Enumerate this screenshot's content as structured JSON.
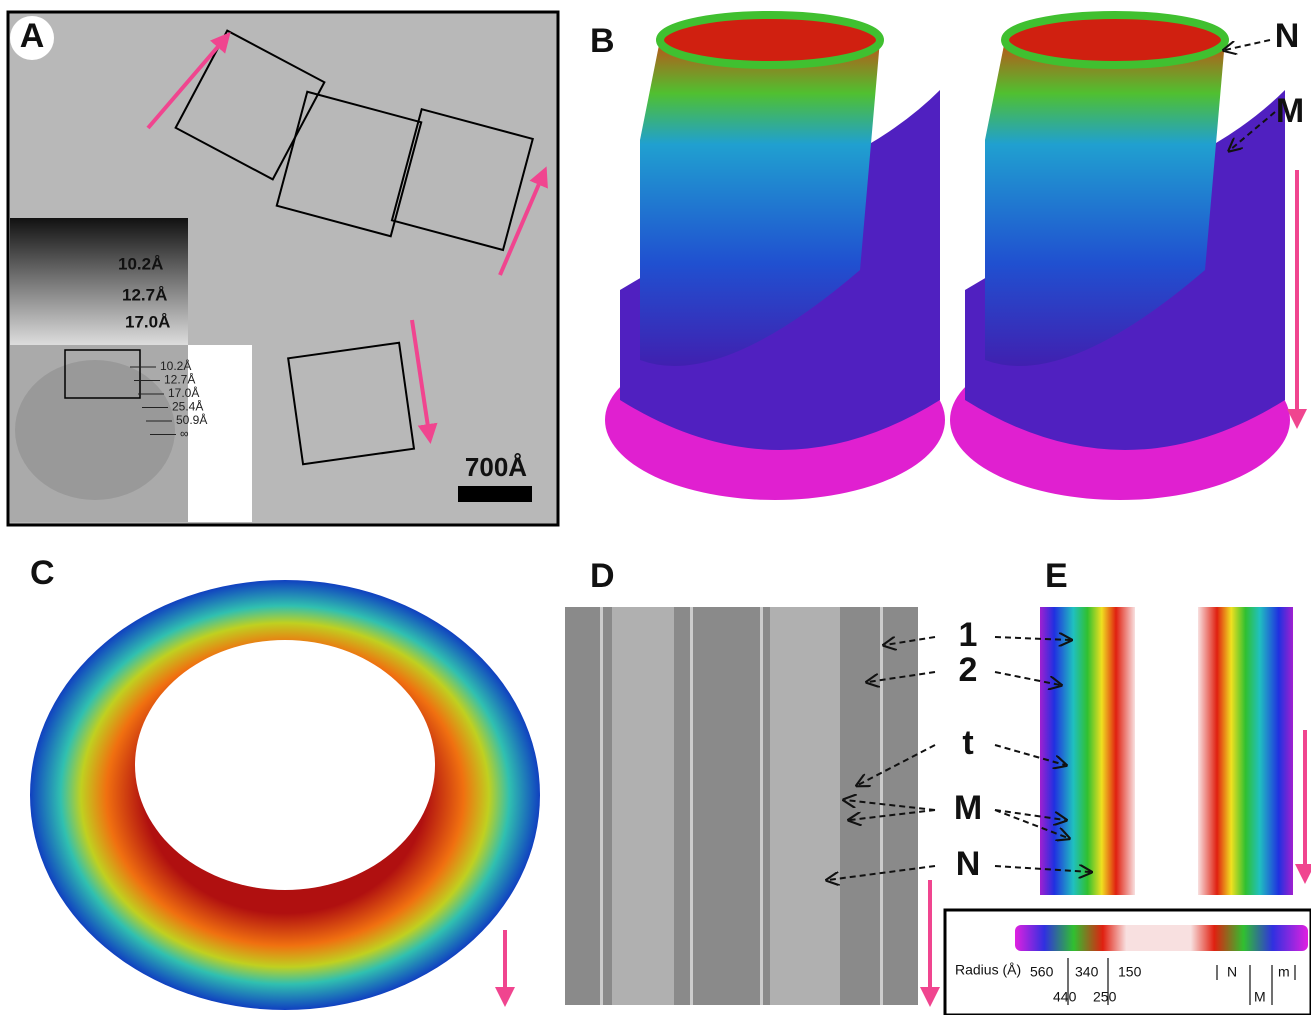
{
  "panels": {
    "a": {
      "label": "A",
      "inset_labels": [
        "10.2Å",
        "12.7Å",
        "17.0Å"
      ],
      "fft_labels": [
        "10.2Å",
        "12.7Å",
        "17.0Å",
        "25.4Å",
        "50.9Å",
        "∞"
      ],
      "scale_bar": "700Å"
    },
    "b": {
      "label": "B",
      "annotations": [
        "N",
        "M"
      ]
    },
    "c": {
      "label": "C"
    },
    "d": {
      "label": "D",
      "annotations": [
        "1",
        "2",
        "t",
        "M",
        "N"
      ]
    },
    "e": {
      "label": "E",
      "legend": {
        "title": "Radius (Å)",
        "ticks_top": [
          "560",
          "340",
          "150"
        ],
        "ticks_bottom": [
          "440",
          "250"
        ],
        "marks_top": [
          "N",
          "m"
        ],
        "marks_bottom": [
          "M"
        ]
      }
    }
  }
}
